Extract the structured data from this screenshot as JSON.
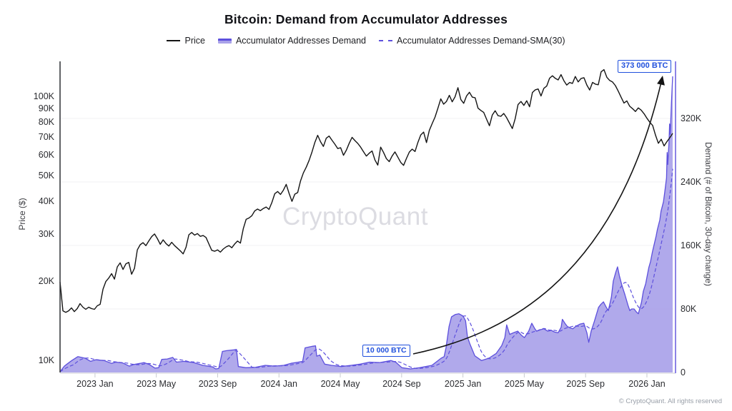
{
  "title": "Bitcoin: Demand from Accumulator Addresses",
  "watermark": "CryptoQuant",
  "footer": "© CryptoQuant. All rights reserved",
  "legend": {
    "items": [
      {
        "label": "Price",
        "swatch": "solid-line"
      },
      {
        "label": "Accumulator Addresses Demand",
        "swatch": "area-band"
      },
      {
        "label": "Accumulator Addresses Demand-SMA(30)",
        "swatch": "dashed-line"
      }
    ]
  },
  "annotations": {
    "peak_label": "373 000 BTC",
    "base_label": "10 000 BTC"
  },
  "colors": {
    "price_line": "#141414",
    "demand_line": "#5d50dd",
    "demand_fill": "#a9a2e9",
    "sma_line": "#5d50dd",
    "annotation_blue": "#2050dd",
    "grid": "#f0f0f3",
    "axis_left": "#2f3035",
    "axis_right": "#8c83e6",
    "axis_bottom": "#d6d8dd",
    "tick_mark": "#c9cbd1",
    "watermark": "#dcdce2",
    "footer_text": "#9aa0a9"
  },
  "chart_data": {
    "type": "line+area",
    "title": "Bitcoin: Demand from Accumulator Addresses",
    "time_domain_years": [
      2022.81,
      2026.14
    ],
    "x_ticks": {
      "years": [
        2023.0,
        2023.3333,
        2023.6667,
        2024.0,
        2024.3333,
        2024.6667,
        2025.0,
        2025.3333,
        2025.6667,
        2026.0
      ],
      "labels": [
        "2023 Jan",
        "2023 May",
        "2023 Sep",
        "2024 Jan",
        "2024 May",
        "2024 Sep",
        "2025 Jan",
        "2025 May",
        "2025 Sep",
        "2026 Jan"
      ]
    },
    "left_axis": {
      "title": "Price ($)",
      "scale": "log",
      "tick_labels": [
        "10K",
        "20K",
        "30K",
        "40K",
        "50K",
        "60K",
        "70K",
        "80K",
        "90K",
        "100K"
      ],
      "tick_values_kusd": [
        10,
        20,
        30,
        40,
        50,
        60,
        70,
        80,
        90,
        100
      ]
    },
    "right_axis": {
      "title": "Demand (# of Bitcoin, 30-day change)",
      "scale": "linear",
      "tick_labels": [
        "0",
        "80K",
        "160K",
        "240K",
        "320K"
      ],
      "tick_values_kbtc": [
        0,
        80,
        160,
        240,
        320
      ]
    },
    "grid": "horizontal-faint",
    "legend_position": "top-center",
    "series": [
      {
        "name": "Price",
        "type": "line",
        "unit": "USD thousands",
        "sampling": "evenly spaced across time_domain_years",
        "values": [
          19.8,
          15.4,
          15.2,
          15.4,
          15.8,
          15.3,
          15.7,
          16.4,
          15.9,
          15.6,
          15.9,
          15.7,
          15.6,
          16.1,
          16.3,
          18.6,
          19.9,
          20.5,
          21.3,
          20.3,
          22.6,
          23.4,
          22.1,
          23.2,
          23.5,
          21.2,
          22.3,
          26.2,
          27.4,
          27.9,
          27.2,
          28.3,
          29.4,
          30.1,
          28.9,
          27.5,
          28.6,
          27.7,
          27.1,
          28.0,
          27.2,
          26.6,
          26.0,
          25.3,
          26.8,
          29.9,
          30.5,
          29.8,
          30.2,
          29.5,
          29.7,
          29.2,
          27.6,
          26.1,
          25.9,
          26.2,
          25.7,
          26.4,
          26.9,
          27.2,
          26.7,
          27.6,
          28.3,
          27.8,
          31.5,
          34.2,
          34.6,
          35.3,
          36.8,
          37.4,
          36.9,
          37.6,
          38.1,
          37.3,
          39.6,
          42.8,
          43.6,
          42.5,
          44.1,
          46.4,
          42.9,
          40.0,
          42.6,
          43.2,
          47.8,
          51.3,
          53.9,
          57.2,
          61.5,
          66.8,
          71.2,
          67.3,
          64.6,
          69.4,
          70.7,
          68.2,
          65.9,
          63.4,
          63.9,
          59.8,
          62.5,
          66.4,
          69.9,
          68.0,
          66.3,
          64.2,
          61.7,
          59.4,
          60.9,
          62.1,
          57.4,
          54.9,
          64.2,
          61.3,
          58.1,
          56.6,
          59.4,
          61.6,
          58.8,
          56.2,
          54.8,
          58.2,
          61.5,
          63.1,
          61.8,
          66.9,
          71.4,
          73.2,
          66.8,
          74.3,
          78.9,
          83.5,
          90.2,
          97.8,
          93.4,
          95.7,
          100.9,
          95.3,
          99.6,
          107.8,
          97.2,
          94.1,
          100.4,
          103.6,
          99.3,
          98.7,
          90.2,
          88.4,
          86.9,
          81.9,
          77.4,
          85.0,
          88.2,
          84.5,
          84.0,
          86.1,
          83.0,
          79.2,
          75.5,
          82.3,
          93.1,
          95.6,
          92.4,
          96.2,
          91.3,
          103.4,
          105.8,
          106.6,
          100.3,
          107.2,
          109.4,
          117.1,
          119.6,
          117.0,
          115.4,
          120.8,
          114.6,
          110.3,
          112.8,
          111.9,
          118.9,
          113.4,
          116.9,
          117.6,
          110.4,
          105.7,
          112.9,
          111.2,
          110.6,
          123.8,
          126.2,
          118.1,
          114.8,
          113.3,
          109.8,
          104.6,
          99.2,
          94.3,
          96.1,
          91.7,
          89.8,
          87.6,
          90.4,
          88.7,
          85.9,
          82.6,
          79.8,
          77.6,
          71.3,
          66.4,
          68.8,
          64.9,
          67.4,
          69.7,
          72.4
        ]
      },
      {
        "name": "Accumulator Addresses Demand",
        "type": "area",
        "unit": "BTC thousands",
        "sampling": "pairs of [fraction of time_domain, value]",
        "points": [
          [
            0,
            1
          ],
          [
            0.007,
            8
          ],
          [
            0.012,
            11
          ],
          [
            0.019,
            15
          ],
          [
            0.029,
            20
          ],
          [
            0.041,
            18
          ],
          [
            0.05,
            14
          ],
          [
            0.058,
            16
          ],
          [
            0.072,
            15
          ],
          [
            0.084,
            11.5
          ],
          [
            0.091,
            13
          ],
          [
            0.102,
            12
          ],
          [
            0.113,
            8
          ],
          [
            0.12,
            10
          ],
          [
            0.131,
            11.5
          ],
          [
            0.137,
            12.5
          ],
          [
            0.146,
            10
          ],
          [
            0.155,
            5.5
          ],
          [
            0.161,
            6
          ],
          [
            0.166,
            16.5
          ],
          [
            0.175,
            17
          ],
          [
            0.184,
            19
          ],
          [
            0.19,
            13
          ],
          [
            0.202,
            14
          ],
          [
            0.218,
            12.5
          ],
          [
            0.233,
            9
          ],
          [
            0.249,
            7
          ],
          [
            0.254,
            4.5
          ],
          [
            0.259,
            5
          ],
          [
            0.265,
            26.5
          ],
          [
            0.272,
            27.5
          ],
          [
            0.284,
            28.5
          ],
          [
            0.288,
            29
          ],
          [
            0.291,
            7.5
          ],
          [
            0.303,
            6
          ],
          [
            0.319,
            6.5
          ],
          [
            0.335,
            9
          ],
          [
            0.35,
            8
          ],
          [
            0.365,
            9
          ],
          [
            0.377,
            11.5
          ],
          [
            0.389,
            13
          ],
          [
            0.396,
            14
          ],
          [
            0.4,
            31
          ],
          [
            0.412,
            33
          ],
          [
            0.417,
            33.5
          ],
          [
            0.419,
            20.5
          ],
          [
            0.424,
            22
          ],
          [
            0.432,
            10.5
          ],
          [
            0.443,
            9
          ],
          [
            0.459,
            7.5
          ],
          [
            0.475,
            9
          ],
          [
            0.49,
            10.5
          ],
          [
            0.505,
            13
          ],
          [
            0.522,
            12.5
          ],
          [
            0.54,
            15
          ],
          [
            0.548,
            13
          ],
          [
            0.558,
            6
          ],
          [
            0.572,
            4.5
          ],
          [
            0.587,
            6
          ],
          [
            0.607,
            9
          ],
          [
            0.622,
            18
          ],
          [
            0.627,
            20
          ],
          [
            0.63,
            31
          ],
          [
            0.635,
            58
          ],
          [
            0.639,
            70
          ],
          [
            0.645,
            73
          ],
          [
            0.651,
            74
          ],
          [
            0.658,
            71
          ],
          [
            0.662,
            65
          ],
          [
            0.665,
            45
          ],
          [
            0.669,
            36
          ],
          [
            0.677,
            21
          ],
          [
            0.688,
            15
          ],
          [
            0.7,
            18
          ],
          [
            0.712,
            24
          ],
          [
            0.721,
            34
          ],
          [
            0.726,
            44
          ],
          [
            0.729,
            60
          ],
          [
            0.734,
            48
          ],
          [
            0.74,
            50
          ],
          [
            0.747,
            52
          ],
          [
            0.753,
            47
          ],
          [
            0.758,
            44
          ],
          [
            0.765,
            52
          ],
          [
            0.77,
            62
          ],
          [
            0.775,
            55
          ],
          [
            0.778,
            52
          ],
          [
            0.785,
            54
          ],
          [
            0.79,
            55
          ],
          [
            0.796,
            52
          ],
          [
            0.802,
            53
          ],
          [
            0.807,
            51
          ],
          [
            0.813,
            50
          ],
          [
            0.818,
            57
          ],
          [
            0.82,
            67
          ],
          [
            0.824,
            62
          ],
          [
            0.828,
            58
          ],
          [
            0.833,
            56
          ],
          [
            0.837,
            55
          ],
          [
            0.84,
            57
          ],
          [
            0.844,
            59
          ],
          [
            0.849,
            61
          ],
          [
            0.855,
            62
          ],
          [
            0.86,
            50
          ],
          [
            0.863,
            38
          ],
          [
            0.867,
            52
          ],
          [
            0.872,
            64
          ],
          [
            0.879,
            82
          ],
          [
            0.883,
            86
          ],
          [
            0.887,
            89
          ],
          [
            0.891,
            83
          ],
          [
            0.895,
            78
          ],
          [
            0.9,
            95
          ],
          [
            0.903,
            115
          ],
          [
            0.907,
            126
          ],
          [
            0.91,
            133
          ],
          [
            0.913,
            122
          ],
          [
            0.917,
            110
          ],
          [
            0.922,
            98
          ],
          [
            0.927,
            85
          ],
          [
            0.93,
            78
          ],
          [
            0.933,
            80
          ],
          [
            0.937,
            80
          ],
          [
            0.941,
            76
          ],
          [
            0.944,
            74
          ],
          [
            0.949,
            88
          ],
          [
            0.952,
            102
          ],
          [
            0.956,
            112
          ],
          [
            0.958,
            120
          ],
          [
            0.961,
            132
          ],
          [
            0.964,
            140
          ],
          [
            0.967,
            152
          ],
          [
            0.97,
            162
          ],
          [
            0.973,
            172
          ],
          [
            0.975,
            180
          ],
          [
            0.979,
            192
          ],
          [
            0.981,
            203
          ],
          [
            0.985,
            215
          ],
          [
            0.987,
            227
          ],
          [
            0.99,
            245
          ],
          [
            0.991,
            277
          ],
          [
            0.992,
            262
          ],
          [
            0.994,
            290
          ],
          [
            0.995,
            313
          ],
          [
            0.996,
            300
          ],
          [
            0.998,
            340
          ],
          [
            1,
            373
          ]
        ],
        "end_value_kbtc": 373,
        "annotated_points": [
          {
            "label": "10 000 BTC",
            "value_btc": 10000,
            "near_year": 2024.7
          },
          {
            "label": "373 000 BTC",
            "value_btc": 373000,
            "near_year": 2026.14
          }
        ]
      },
      {
        "name": "Accumulator Addresses Demand-SMA(30)",
        "type": "dashed-line",
        "unit": "BTC thousands",
        "derived": "30-day trailing moving average of Accumulator Addresses Demand",
        "sma_window_days": 30
      }
    ]
  }
}
